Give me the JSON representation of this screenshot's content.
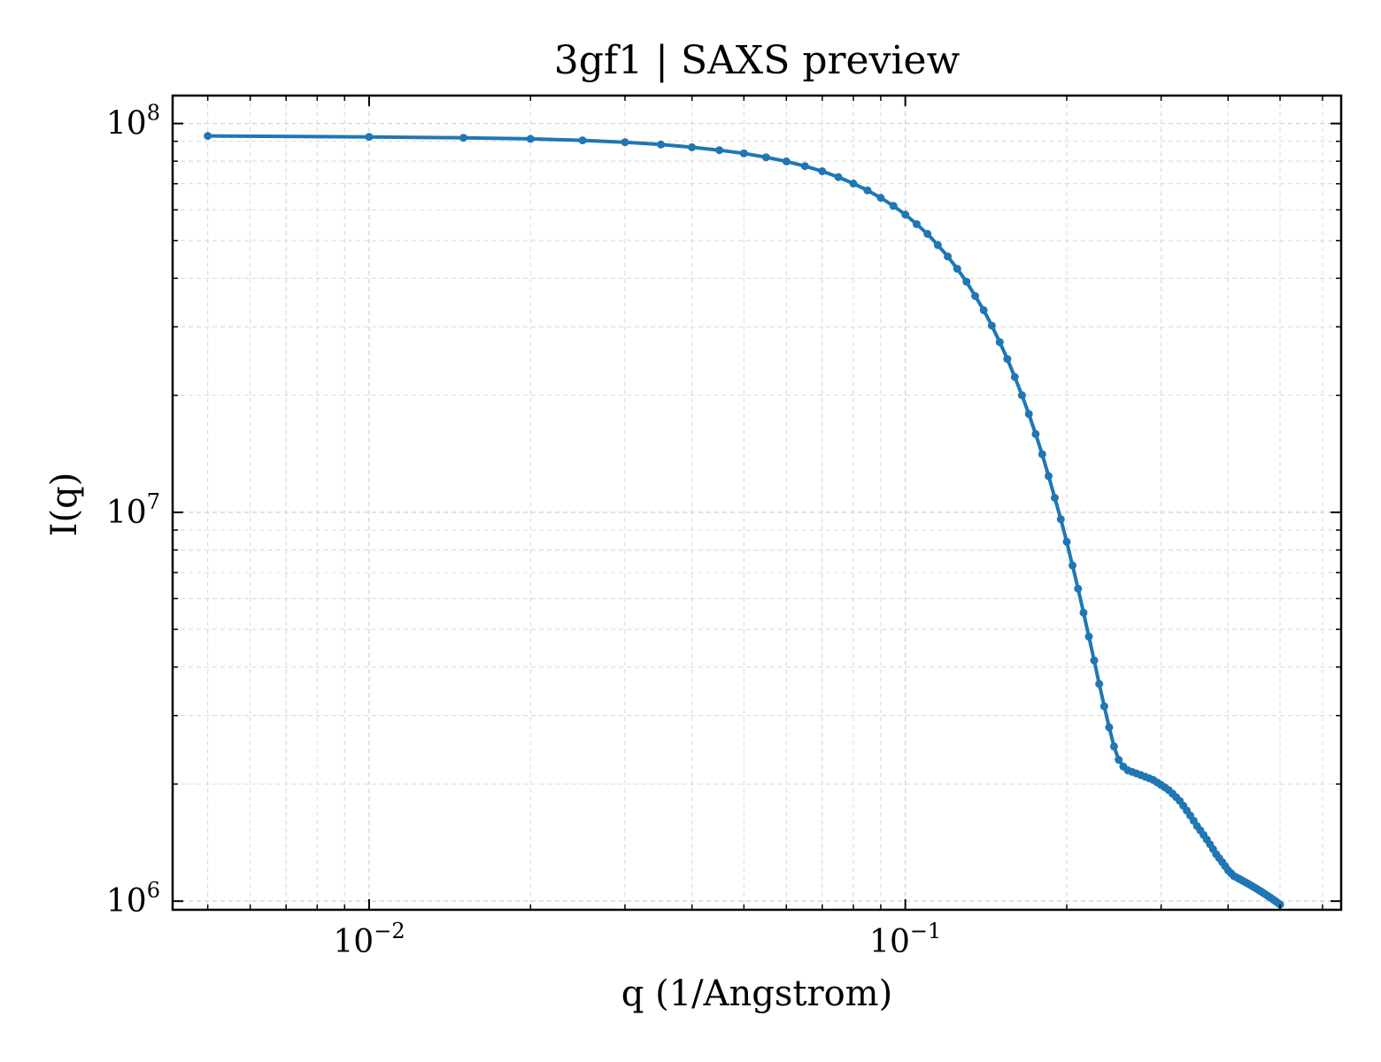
{
  "chart_data": {
    "type": "line",
    "title": "3gf1 | SAXS preview",
    "xlabel": "q (1/Angstrom)",
    "ylabel": "I(q)",
    "xscale": "log",
    "yscale": "log",
    "xlim": [
      0.0043,
      0.65
    ],
    "ylim": [
      950000,
      118000000
    ],
    "grid": true,
    "legend": "none",
    "x_ticks": [
      {
        "value": 0.01,
        "base": "10",
        "exp": "−2"
      },
      {
        "value": 0.1,
        "base": "10",
        "exp": "−1"
      }
    ],
    "y_ticks": [
      {
        "value": 1000000,
        "base": "10",
        "exp": "6"
      },
      {
        "value": 10000000,
        "base": "10",
        "exp": "7"
      },
      {
        "value": 100000000,
        "base": "10",
        "exp": "8"
      }
    ],
    "series": [
      {
        "color": "#1f77b4",
        "x": [
          0.005,
          0.01,
          0.015,
          0.02,
          0.025,
          0.03,
          0.035,
          0.04,
          0.045,
          0.05,
          0.055,
          0.06,
          0.065,
          0.07,
          0.075,
          0.08,
          0.085,
          0.09,
          0.095,
          0.1,
          0.105,
          0.11,
          0.115,
          0.12,
          0.125,
          0.13,
          0.135,
          0.14,
          0.145,
          0.15,
          0.155,
          0.16,
          0.165,
          0.17,
          0.175,
          0.18,
          0.185,
          0.19,
          0.195,
          0.2,
          0.205,
          0.21,
          0.215,
          0.22,
          0.225,
          0.23,
          0.235,
          0.24,
          0.245,
          0.25,
          0.255,
          0.26,
          0.265,
          0.27,
          0.275,
          0.28,
          0.285,
          0.29,
          0.295,
          0.3,
          0.305,
          0.31,
          0.315,
          0.32,
          0.325,
          0.33,
          0.335,
          0.34,
          0.345,
          0.35,
          0.355,
          0.36,
          0.365,
          0.37,
          0.375,
          0.38,
          0.385,
          0.39,
          0.395,
          0.4,
          0.405,
          0.41,
          0.415,
          0.42,
          0.425,
          0.43,
          0.435,
          0.44,
          0.445,
          0.45,
          0.455,
          0.46,
          0.465,
          0.47,
          0.475,
          0.48,
          0.485,
          0.49,
          0.495,
          0.5
        ],
        "y": [
          92900000,
          92400000,
          91900000,
          91300000,
          90500000,
          89500000,
          88300000,
          86900000,
          85400000,
          83800000,
          81900000,
          79900000,
          77700000,
          75400000,
          72800000,
          70100000,
          67300000,
          64400000,
          61400000,
          58300000,
          55100000,
          52000000,
          48700000,
          45500000,
          42300000,
          39200000,
          36000000,
          33100000,
          30200000,
          27400000,
          24800000,
          22300000,
          20000000,
          17900000,
          15900000,
          14100000,
          12400000,
          10900000,
          9600000,
          8400000,
          7300000,
          6360000,
          5520000,
          4790000,
          4160000,
          3620000,
          3170000,
          2800000,
          2500000,
          2310000,
          2220000,
          2170000,
          2150000,
          2130000,
          2110000,
          2090000,
          2070000,
          2050000,
          2020000,
          1990000,
          1960000,
          1930000,
          1890000,
          1850000,
          1810000,
          1760000,
          1710000,
          1660000,
          1610000,
          1560000,
          1520000,
          1480000,
          1440000,
          1400000,
          1360000,
          1320000,
          1290000,
          1260000,
          1230000,
          1200000,
          1180000,
          1160000,
          1150000,
          1140000,
          1130000,
          1120000,
          1110000,
          1100000,
          1090000,
          1080000,
          1070000,
          1060000,
          1050000,
          1040000,
          1030000,
          1020000,
          1010000,
          1000000,
          990000,
          980000
        ]
      }
    ]
  }
}
